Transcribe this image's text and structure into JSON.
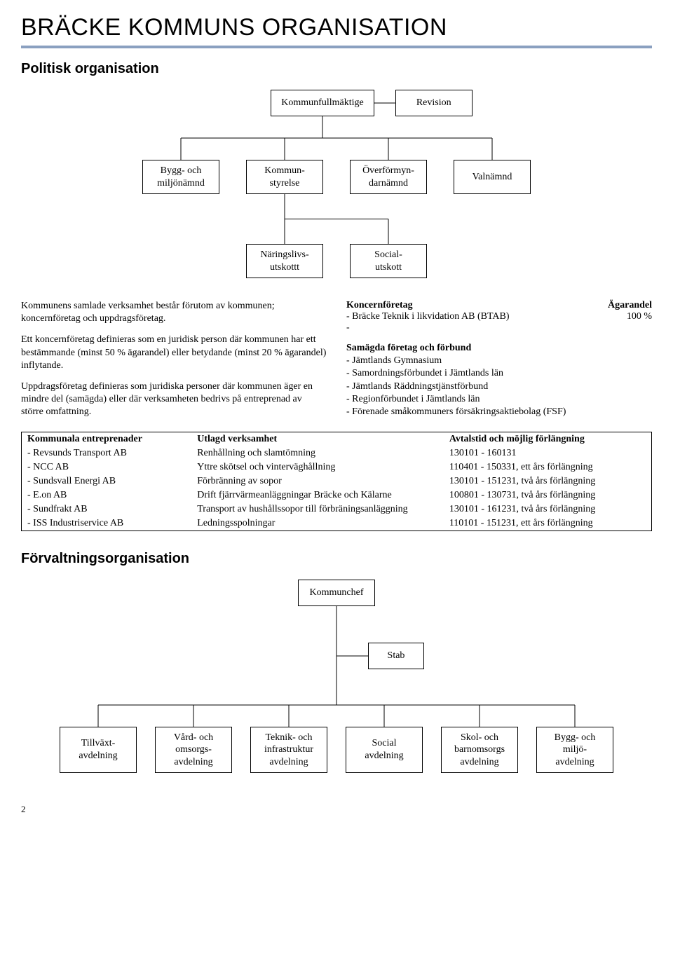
{
  "page_title": "BRÄCKE KOMMUNS ORGANISATION",
  "section1_title": "Politisk organisation",
  "section2_title": "Förvaltningsorganisation",
  "page_number": "2",
  "chart1": {
    "type": "tree",
    "row1": [
      "Kommunfullmäktige",
      "Revision"
    ],
    "row2": [
      "Bygg- och\nmiljönämnd",
      "Kommun-\nstyrelse",
      "Överförmyn-\ndarnämnd",
      "Valnämnd"
    ],
    "row3": [
      "Näringslivs-\nutskottt",
      "Social-\nutskott"
    ],
    "node_border": "#000000",
    "node_bg": "#ffffff",
    "connector_color": "#000000"
  },
  "para1": "Kommunens samlade verksamhet består förutom av kommunen; koncernföretag och uppdragsföretag.",
  "para2": "Ett koncernföretag definieras som en juridisk person där kommunen har ett bestämmande (minst 50 % ägarandel) eller betydande (minst 20 % ägarandel) inflytande.",
  "para3": "Uppdragsföretag definieras som juridiska personer där kommunen äger en mindre del (samägda) eller där verksamheten bedrivs på entreprenad av större omfattning.",
  "koncern_head_left": "Koncernföretag",
  "koncern_head_right": "Ägarandel",
  "koncern_item_left": "- Bräcke Teknik i likvidation AB (BTAB)",
  "koncern_item_right": "100 %",
  "koncern_dash": "-",
  "samagda_head": "Samägda företag och förbund",
  "samagda_items": [
    "- Jämtlands Gymnasium",
    "- Samordningsförbundet i Jämtlands län",
    "- Jämtlands Räddningstjänstförbund",
    "- Regionförbundet i Jämtlands län",
    "- Förenade småkommuners försäkringsaktiebolag (FSF)"
  ],
  "table": {
    "headers": [
      "Kommunala entreprenader",
      "Utlagd verksamhet",
      "Avtalstid och möjlig förlängning"
    ],
    "rows": [
      [
        "- Revsunds Transport AB",
        "Renhållning och slamtömning",
        "130101 - 160131"
      ],
      [
        "- NCC AB",
        "Yttre skötsel och vinterväghållning",
        "110401 - 150331, ett års förlängning"
      ],
      [
        "- Sundsvall Energi AB",
        "Förbränning av sopor",
        "130101 - 151231, två års förlängning"
      ],
      [
        "- E.on AB",
        "Drift fjärrvärmeanläggningar Bräcke och Kälarne",
        "100801 - 130731, två års förlängning"
      ],
      [
        "- Sundfrakt AB",
        "Transport av hushållssopor till förbräningsanläggning",
        "130101 - 161231, två års förlängning"
      ],
      [
        "- ISS Industriservice AB",
        "Ledningsspolningar",
        "110101 - 151231, ett års förlängning"
      ]
    ],
    "col_widths": [
      "27%",
      "40%",
      "33%"
    ]
  },
  "chart2": {
    "type": "tree",
    "row1": [
      "Kommunchef"
    ],
    "row2": [
      "Stab"
    ],
    "row3": [
      "Tillväxt-\navdelning",
      "Vård- och\nomsorgs-\navdelning",
      "Teknik- och\ninfrastruktur\navdelning",
      "Social\navdelning",
      "Skol- och\nbarnomsorgs\navdelning",
      "Bygg- och\nmiljö-\navdelning"
    ],
    "node_border": "#000000",
    "connector_color": "#000000"
  }
}
